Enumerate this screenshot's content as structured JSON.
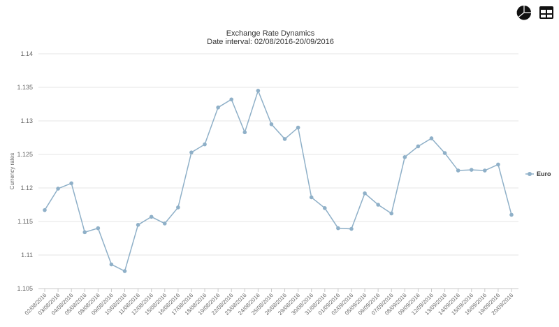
{
  "toolbar": {
    "pie_icon": "pie-chart-icon",
    "table_icon": "table-icon"
  },
  "chart_data": {
    "type": "line",
    "title": "Exchange Rate Dynamics",
    "subtitle": "Date interval: 02/08/2016-20/09/2016",
    "xlabel": "",
    "ylabel": "Currency rates",
    "ylim": [
      1.105,
      1.14
    ],
    "yticks": [
      "1.105",
      "1.11",
      "1.115",
      "1.12",
      "1.125",
      "1.13",
      "1.135",
      "1.14"
    ],
    "grid": true,
    "legend_position": "right",
    "categories": [
      "02/08/2016",
      "03/08/2016",
      "04/08/2016",
      "05/08/2016",
      "08/08/2016",
      "09/08/2016",
      "10/08/2016",
      "11/08/2016",
      "12/08/2016",
      "15/08/2016",
      "16/08/2016",
      "17/08/2016",
      "18/08/2016",
      "19/08/2016",
      "22/08/2016",
      "23/08/2016",
      "24/08/2016",
      "25/08/2016",
      "26/08/2016",
      "29/08/2016",
      "30/08/2016",
      "31/08/2016",
      "01/09/2016",
      "02/09/2016",
      "05/09/2016",
      "06/09/2016",
      "07/09/2016",
      "08/09/2016",
      "09/09/2016",
      "12/09/2016",
      "13/09/2016",
      "14/09/2016",
      "15/09/2016",
      "16/09/2016",
      "19/09/2016",
      "20/09/2016"
    ],
    "series": [
      {
        "name": "Euro",
        "color": "#8fb0c8",
        "values": [
          1.1167,
          1.1199,
          1.1207,
          1.1134,
          1.114,
          1.1086,
          1.1076,
          1.1145,
          1.1157,
          1.1147,
          1.1171,
          1.1253,
          1.1265,
          1.132,
          1.1332,
          1.1283,
          1.1345,
          1.1295,
          1.1273,
          1.129,
          1.1186,
          1.117,
          1.114,
          1.1139,
          1.1192,
          1.1175,
          1.1162,
          1.1246,
          1.1262,
          1.1274,
          1.1252,
          1.1226,
          1.1227,
          1.1226,
          1.1235,
          1.116
        ]
      }
    ]
  }
}
